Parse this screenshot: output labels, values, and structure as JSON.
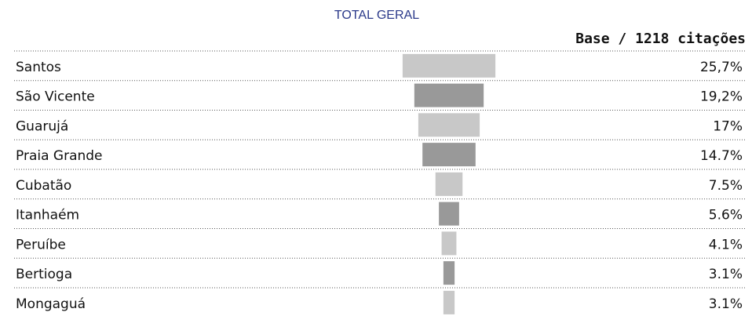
{
  "chart_data": {
    "type": "bar",
    "title": "TOTAL GERAL",
    "subtitle": "Base / 1218 citações",
    "categories": [
      "Santos",
      "São Vicente",
      "Guarujá",
      "Praia Grande",
      "Cubatão",
      "Itanhaém",
      "Peruíbe",
      "Bertioga",
      "Mongaguá"
    ],
    "values": [
      25.7,
      19.2,
      17,
      14.7,
      7.5,
      5.6,
      4.1,
      3.1,
      3.1
    ],
    "value_labels": [
      "25,7%",
      "19,2%",
      "17%",
      "14.7%",
      "7.5%",
      "5.6%",
      "4.1%",
      "3.1%",
      "3.1%"
    ],
    "colors": [
      "#c8c8c8",
      "#999999",
      "#c8c8c8",
      "#999999",
      "#c8c8c8",
      "#999999",
      "#c8c8c8",
      "#999999",
      "#c8c8c8"
    ]
  }
}
